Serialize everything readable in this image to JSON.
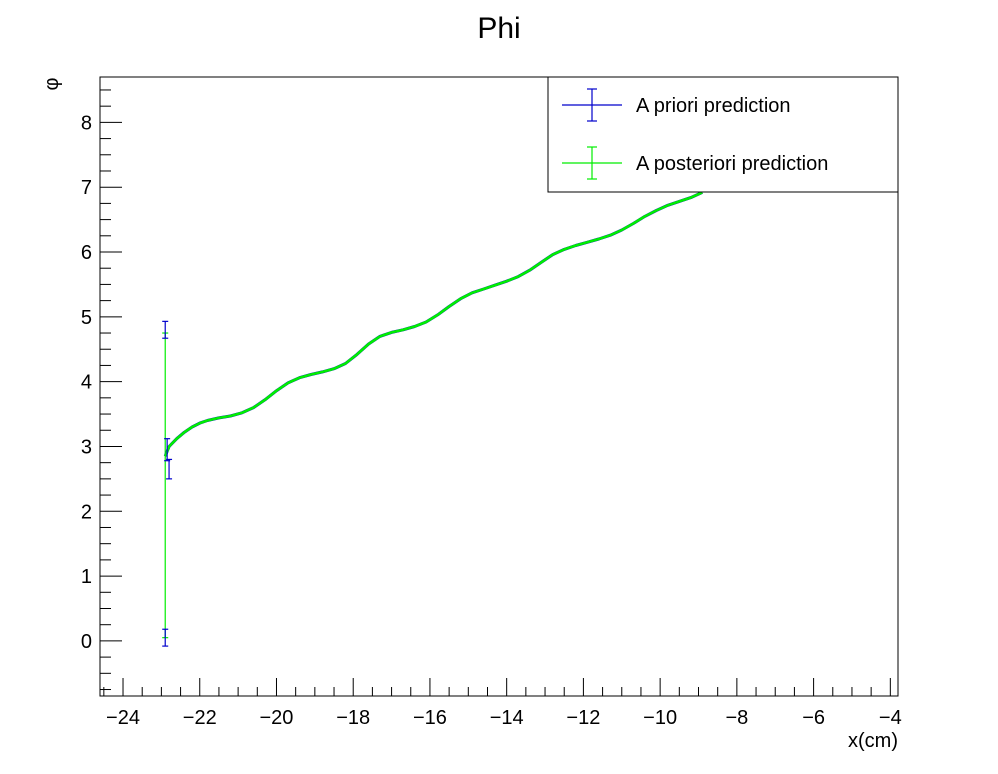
{
  "chart_data": {
    "type": "line",
    "title": "Phi",
    "xlabel": "x(cm)",
    "ylabel": "φ",
    "xlim": [
      -24.6,
      -3.8
    ],
    "ylim": [
      -0.85,
      8.7
    ],
    "x_ticks": [
      -24,
      -22,
      -20,
      -18,
      -16,
      -14,
      -12,
      -10,
      -8,
      -6,
      -4
    ],
    "y_ticks": [
      0,
      1,
      2,
      3,
      4,
      5,
      6,
      7,
      8
    ],
    "grid": false,
    "legend_position": "top-right",
    "colors": {
      "prior": "#0000cc",
      "posterior": "#00ee00",
      "axis": "#000000"
    },
    "series": [
      {
        "name": "A priori prediction",
        "color": "#0000cc",
        "points": [
          {
            "x": -22.9,
            "y": 0.05,
            "err": 0.13
          },
          {
            "x": -22.9,
            "y": 4.8,
            "err": 0.13
          },
          {
            "x": -22.85,
            "y": 2.95,
            "err": 0.17
          },
          {
            "x": -22.8,
            "y": 2.65,
            "err": 0.15
          }
        ],
        "x": [
          -22.9,
          -22.8,
          -22.6,
          -22.4,
          -22.2,
          -22.0,
          -21.8,
          -21.5,
          -21.2,
          -20.9,
          -20.6,
          -20.3,
          -20.0,
          -19.7,
          -19.4,
          -19.1,
          -18.8,
          -18.5,
          -18.2,
          -17.9,
          -17.6,
          -17.3,
          -17.0,
          -16.7,
          -16.4,
          -16.1,
          -15.8,
          -15.5,
          -15.2,
          -14.9,
          -14.6,
          -14.3,
          -14.0,
          -13.7,
          -13.4,
          -13.1,
          -12.8,
          -12.5,
          -12.2,
          -11.9,
          -11.6,
          -11.3,
          -11.0,
          -10.7,
          -10.4,
          -10.1,
          -9.8,
          -9.5,
          -9.2,
          -8.9
        ],
        "y": [
          2.85,
          3.0,
          3.12,
          3.22,
          3.3,
          3.36,
          3.4,
          3.44,
          3.47,
          3.52,
          3.6,
          3.72,
          3.86,
          3.98,
          4.06,
          4.11,
          4.15,
          4.2,
          4.28,
          4.42,
          4.58,
          4.7,
          4.76,
          4.8,
          4.85,
          4.92,
          5.03,
          5.16,
          5.28,
          5.37,
          5.43,
          5.49,
          5.55,
          5.62,
          5.72,
          5.84,
          5.96,
          6.04,
          6.1,
          6.15,
          6.2,
          6.26,
          6.34,
          6.44,
          6.55,
          6.64,
          6.72,
          6.78,
          6.84,
          6.92
        ]
      },
      {
        "name": "A posteriori prediction",
        "color": "#00ee00",
        "points": [
          {
            "x": -22.9,
            "y": 2.4,
            "err": 2.35
          }
        ],
        "x": [
          -22.9,
          -22.8,
          -22.6,
          -22.4,
          -22.2,
          -22.0,
          -21.8,
          -21.5,
          -21.2,
          -20.9,
          -20.6,
          -20.3,
          -20.0,
          -19.7,
          -19.4,
          -19.1,
          -18.8,
          -18.5,
          -18.2,
          -17.9,
          -17.6,
          -17.3,
          -17.0,
          -16.7,
          -16.4,
          -16.1,
          -15.8,
          -15.5,
          -15.2,
          -14.9,
          -14.6,
          -14.3,
          -14.0,
          -13.7,
          -13.4,
          -13.1,
          -12.8,
          -12.5,
          -12.2,
          -11.9,
          -11.6,
          -11.3,
          -11.0,
          -10.7,
          -10.4,
          -10.1,
          -9.8,
          -9.5,
          -9.2,
          -8.9
        ],
        "y": [
          2.85,
          3.0,
          3.12,
          3.22,
          3.3,
          3.36,
          3.4,
          3.44,
          3.47,
          3.52,
          3.6,
          3.72,
          3.86,
          3.98,
          4.06,
          4.11,
          4.15,
          4.2,
          4.28,
          4.42,
          4.58,
          4.7,
          4.76,
          4.8,
          4.85,
          4.92,
          5.03,
          5.16,
          5.28,
          5.37,
          5.43,
          5.49,
          5.55,
          5.62,
          5.72,
          5.84,
          5.96,
          6.04,
          6.1,
          6.15,
          6.2,
          6.26,
          6.34,
          6.44,
          6.55,
          6.64,
          6.72,
          6.78,
          6.84,
          6.92
        ]
      }
    ]
  }
}
